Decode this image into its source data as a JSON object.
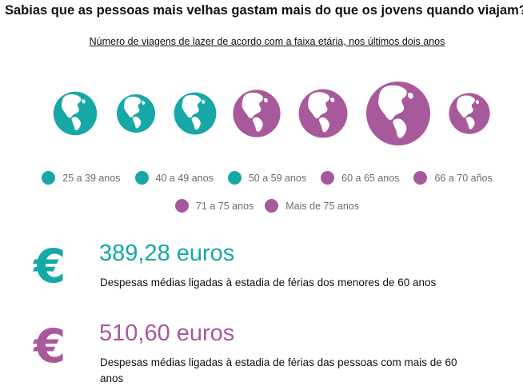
{
  "header": {
    "title": "Sabias que as pessoas mais velhas gastam mais do que os jovens quando viajam?",
    "subtitle": "Número de viagens de lazer de acordo com a faixa etária, nos últimos dois anos"
  },
  "colors": {
    "teal": "#16a8a6",
    "purple": "#a8599b"
  },
  "chart_data": {
    "type": "bubble",
    "title": "Número de viagens de lazer de acordo com a faixa etária, nos últimos dois anos",
    "marker_icon": "globe-icon",
    "categories": [
      "25 a 39 anos",
      "40 a 49 anos",
      "50 a 59 anos",
      "60 a 65 anos",
      "66 a 70 años",
      "71 a 75 anos",
      "Mais de 75 anos"
    ],
    "relative_size": [
      0.68,
      0.6,
      0.66,
      0.74,
      0.76,
      1.0,
      0.64
    ],
    "group": [
      "under60",
      "under60",
      "under60",
      "over60",
      "over60",
      "over60",
      "over60"
    ],
    "legend": [
      {
        "label": "25 a 39 anos",
        "color": "#16a8a6"
      },
      {
        "label": "40 a 49 anos",
        "color": "#16a8a6"
      },
      {
        "label": "50 a 59 anos",
        "color": "#16a8a6"
      },
      {
        "label": "60 a 65 anos",
        "color": "#a8599b"
      },
      {
        "label": "66 a 70 años",
        "color": "#a8599b"
      },
      {
        "label": "71 a 75 anos",
        "color": "#a8599b"
      },
      {
        "label": "Mais de 75 anos",
        "color": "#a8599b"
      }
    ]
  },
  "stats": [
    {
      "symbol": "€",
      "value": "389,28 euros",
      "description": "Despesas médias ligadas à estadia de férias dos menores de 60 anos",
      "color": "#16a8a6"
    },
    {
      "symbol": "€",
      "value": "510,60 euros",
      "description": "Despesas médias ligadas à estadia de férias das pessoas com mais de 60 anos",
      "color": "#a8599b"
    }
  ]
}
